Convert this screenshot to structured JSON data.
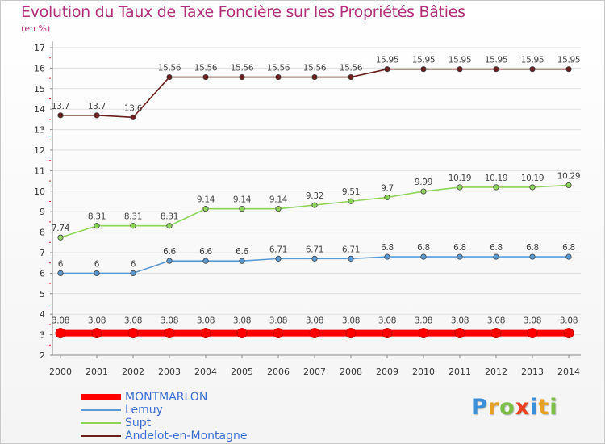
{
  "chart_data": {
    "type": "line",
    "title": "Evolution du Taux de Taxe Foncière sur les Propriétés Bâties",
    "unit_label": "(en %)",
    "xlabel": "",
    "ylabel": "",
    "x": [
      "2000",
      "2001",
      "2002",
      "2003",
      "2004",
      "2005",
      "2006",
      "2007",
      "2008",
      "2009",
      "2010",
      "2011",
      "2012",
      "2013",
      "2014"
    ],
    "ylim": [
      2,
      17
    ],
    "yticks": [
      "2",
      "3",
      "4",
      "5",
      "6",
      "7",
      "8",
      "9",
      "10",
      "11",
      "12",
      "13",
      "14",
      "15",
      "16",
      "17"
    ],
    "grid": "horizontal",
    "series": [
      {
        "name": "MONTMARLON",
        "color": "#ff0000",
        "values": [
          3.08,
          3.08,
          3.08,
          3.08,
          3.08,
          3.08,
          3.08,
          3.08,
          3.08,
          3.08,
          3.08,
          3.08,
          3.08,
          3.08,
          3.08
        ],
        "labels": [
          "3.08",
          "3.08",
          "3.08",
          "3.08",
          "3.08",
          "3.08",
          "3.08",
          "3.08",
          "3.08",
          "3.08",
          "3.08",
          "3.08",
          "3.08",
          "3.08",
          "3.08"
        ]
      },
      {
        "name": "Lemuy",
        "color": "#5a9ad2",
        "values": [
          6,
          6,
          6,
          6.6,
          6.6,
          6.6,
          6.71,
          6.71,
          6.71,
          6.8,
          6.8,
          6.8,
          6.8,
          6.8,
          6.8
        ],
        "labels": [
          "6",
          "6",
          "6",
          "6.6",
          "6.6",
          "6.6",
          "6.71",
          "6.71",
          "6.71",
          "6.8",
          "6.8",
          "6.8",
          "6.8",
          "6.8",
          "6.8"
        ]
      },
      {
        "name": "Supt",
        "color": "#8fd45a",
        "values": [
          7.74,
          8.31,
          8.31,
          8.31,
          9.14,
          9.14,
          9.14,
          9.32,
          9.51,
          9.7,
          9.99,
          10.19,
          10.19,
          10.19,
          10.29
        ],
        "labels": [
          "7.74",
          "8.31",
          "8.31",
          "8.31",
          "9.14",
          "9.14",
          "9.14",
          "9.32",
          "9.51",
          "9.7",
          "9.99",
          "10.19",
          "10.19",
          "10.19",
          "10.29"
        ]
      },
      {
        "name": "Andelot-en-Montagne",
        "color": "#6a1e1e",
        "values": [
          13.7,
          13.7,
          13.6,
          15.56,
          15.56,
          15.56,
          15.56,
          15.56,
          15.56,
          15.95,
          15.95,
          15.95,
          15.95,
          15.95,
          15.95
        ],
        "labels": [
          "13.7",
          "13.7",
          "13.6",
          "15.56",
          "15.56",
          "15.56",
          "15.56",
          "15.56",
          "15.56",
          "15.95",
          "15.95",
          "15.95",
          "15.95",
          "15.95",
          "15.95"
        ]
      }
    ],
    "legend_position": "bottom-left"
  },
  "logo": {
    "letters": [
      "P",
      "r",
      "o",
      "x",
      "i",
      "t",
      "i"
    ],
    "colors": [
      "#3a8fd8",
      "#e8a020",
      "#7ac043",
      "#e84020",
      "#3a8fd8",
      "#e8a020",
      "#7ac043"
    ]
  },
  "colors": {
    "title": "#b0307a",
    "axis_text": "#333333",
    "grid": "#e0e0e0",
    "legend_text": "#3a6fd0"
  }
}
